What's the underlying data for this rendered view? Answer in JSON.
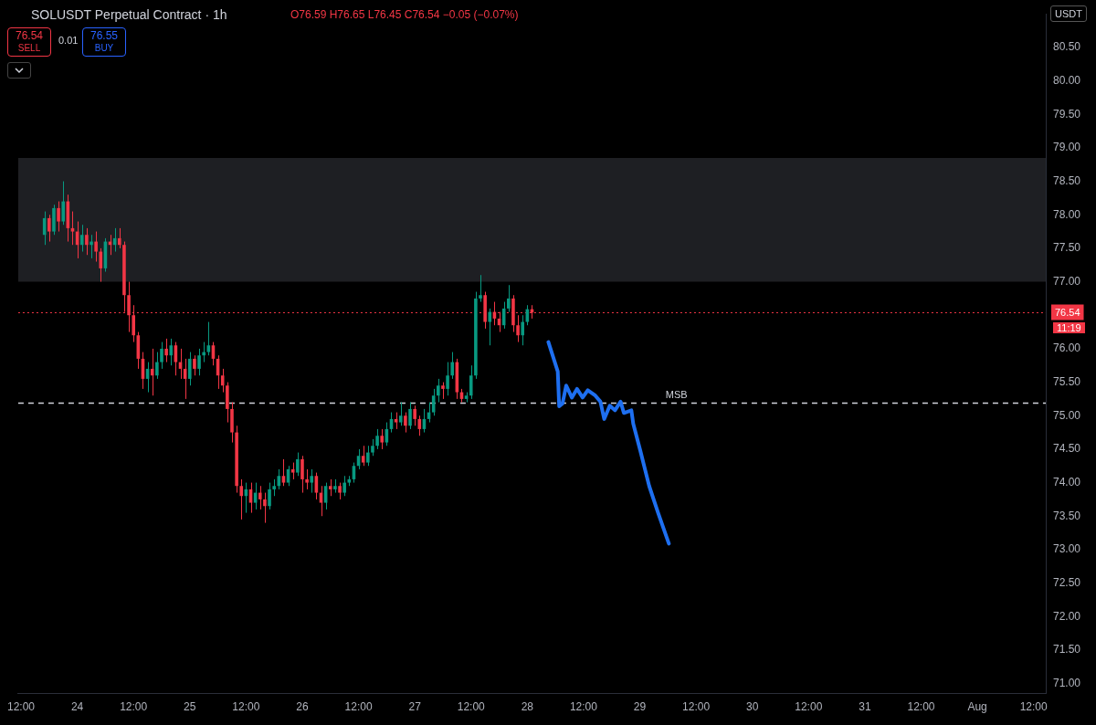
{
  "chart_data": {
    "type": "candlestick",
    "title": "SOLUSDT Perpetual Contract · 1h",
    "annotations": [
      "O76.59 H76.65 L76.45 C76.54 −0.05 (−0.07%)",
      "76.54",
      "SELL",
      "0.01",
      "76.55",
      "BUY",
      "11:19",
      "USDT"
    ],
    "x": [
      "--07-23T17:00",
      "--07-23T18:00",
      "--07-23T19:00",
      "--07-23T20:00",
      "--07-23T21:00",
      "--07-23T22:00",
      "--07-23T23:00",
      "--07-24T00:00",
      "--07-24T01:00",
      "--07-24T02:00",
      "--07-24T03:00",
      "--07-24T04:00",
      "--07-24T05:00",
      "--07-24T06:00",
      "--07-24T07:00",
      "--07-24T08:00",
      "--07-24T09:00",
      "--07-24T10:00",
      "--07-24T11:00",
      "--07-24T12:00",
      "--07-24T13:00",
      "--07-24T14:00",
      "--07-24T15:00",
      "--07-24T16:00",
      "--07-24T17:00",
      "--07-24T18:00",
      "--07-24T19:00",
      "--07-24T20:00",
      "--07-24T21:00",
      "--07-24T22:00",
      "--07-24T23:00",
      "--07-25T00:00",
      "--07-25T01:00",
      "--07-25T02:00",
      "--07-25T03:00",
      "--07-25T04:00",
      "--07-25T05:00",
      "--07-25T06:00",
      "--07-25T07:00",
      "--07-25T08:00",
      "--07-25T09:00",
      "--07-25T10:00",
      "--07-25T11:00",
      "--07-25T12:00",
      "--07-25T13:00",
      "--07-25T14:00",
      "--07-25T15:00",
      "--07-25T16:00",
      "--07-25T17:00",
      "--07-25T18:00",
      "--07-25T19:00",
      "--07-25T20:00",
      "--07-25T21:00",
      "--07-25T22:00",
      "--07-25T23:00",
      "--07-26T00:00",
      "--07-26T01:00",
      "--07-26T02:00",
      "--07-26T03:00",
      "--07-26T04:00",
      "--07-26T05:00",
      "--07-26T06:00",
      "--07-26T07:00",
      "--07-26T08:00",
      "--07-26T09:00",
      "--07-26T10:00",
      "--07-26T11:00",
      "--07-26T12:00",
      "--07-26T13:00",
      "--07-26T14:00",
      "--07-26T15:00",
      "--07-26T16:00",
      "--07-26T17:00",
      "--07-26T18:00",
      "--07-26T19:00",
      "--07-26T20:00",
      "--07-26T21:00",
      "--07-26T22:00",
      "--07-26T23:00",
      "--07-27T00:00",
      "--07-27T01:00",
      "--07-27T02:00",
      "--07-27T03:00",
      "--07-27T04:00",
      "--07-27T05:00",
      "--07-27T06:00",
      "--07-27T07:00",
      "--07-27T08:00",
      "--07-27T09:00",
      "--07-27T10:00",
      "--07-27T11:00",
      "--07-27T12:00",
      "--07-27T13:00",
      "--07-27T14:00",
      "--07-27T15:00",
      "--07-27T16:00",
      "--07-27T17:00",
      "--07-27T18:00",
      "--07-27T19:00",
      "--07-27T20:00",
      "--07-27T21:00",
      "--07-27T22:00",
      "--07-27T23:00",
      "--07-28T00:00",
      "--07-28T01:00"
    ],
    "ohlc": [
      [
        77.7,
        78.05,
        77.55,
        77.95
      ],
      [
        77.95,
        78.0,
        77.6,
        77.75
      ],
      [
        77.75,
        78.15,
        77.7,
        78.1
      ],
      [
        78.1,
        78.2,
        77.75,
        77.9
      ],
      [
        77.9,
        78.5,
        77.85,
        78.2
      ],
      [
        78.2,
        78.3,
        77.6,
        77.8
      ],
      [
        77.8,
        78.05,
        77.55,
        77.75
      ],
      [
        77.75,
        77.9,
        77.35,
        77.55
      ],
      [
        77.55,
        77.85,
        77.45,
        77.7
      ],
      [
        77.7,
        77.8,
        77.4,
        77.55
      ],
      [
        77.55,
        77.7,
        77.35,
        77.6
      ],
      [
        77.6,
        77.75,
        77.3,
        77.45
      ],
      [
        77.45,
        77.5,
        77.0,
        77.2
      ],
      [
        77.2,
        77.65,
        77.15,
        77.6
      ],
      [
        77.6,
        77.7,
        77.4,
        77.55
      ],
      [
        77.55,
        77.8,
        77.45,
        77.65
      ],
      [
        77.65,
        77.8,
        77.5,
        77.55
      ],
      [
        77.55,
        77.6,
        76.55,
        76.8
      ],
      [
        76.8,
        77.0,
        76.25,
        76.5
      ],
      [
        76.5,
        76.65,
        76.1,
        76.2
      ],
      [
        76.2,
        76.25,
        75.7,
        75.85
      ],
      [
        75.85,
        75.95,
        75.4,
        75.55
      ],
      [
        75.55,
        75.8,
        75.35,
        75.7
      ],
      [
        75.7,
        76.0,
        75.3,
        75.6
      ],
      [
        75.6,
        75.95,
        75.55,
        75.8
      ],
      [
        75.8,
        76.1,
        75.7,
        76.0
      ],
      [
        76.0,
        76.15,
        75.8,
        75.9
      ],
      [
        75.9,
        76.15,
        75.75,
        76.05
      ],
      [
        76.05,
        76.1,
        75.6,
        75.8
      ],
      [
        75.8,
        76.0,
        75.55,
        75.7
      ],
      [
        75.7,
        75.85,
        75.25,
        75.55
      ],
      [
        75.55,
        75.95,
        75.45,
        75.85
      ],
      [
        75.85,
        75.9,
        75.6,
        75.7
      ],
      [
        75.7,
        76.0,
        75.6,
        75.9
      ],
      [
        75.9,
        76.1,
        75.8,
        75.95
      ],
      [
        75.95,
        76.4,
        75.9,
        76.05
      ],
      [
        76.05,
        76.1,
        75.75,
        75.85
      ],
      [
        75.85,
        75.9,
        75.4,
        75.6
      ],
      [
        75.6,
        75.7,
        75.35,
        75.45
      ],
      [
        75.45,
        75.5,
        74.9,
        75.1
      ],
      [
        75.1,
        75.2,
        74.6,
        74.75
      ],
      [
        74.75,
        74.85,
        73.85,
        73.95
      ],
      [
        73.95,
        74.05,
        73.45,
        73.8
      ],
      [
        73.8,
        74.0,
        73.55,
        73.9
      ],
      [
        73.9,
        74.0,
        73.55,
        73.7
      ],
      [
        73.7,
        74.0,
        73.6,
        73.85
      ],
      [
        73.85,
        73.95,
        73.6,
        73.75
      ],
      [
        73.75,
        73.85,
        73.4,
        73.65
      ],
      [
        73.65,
        74.0,
        73.6,
        73.9
      ],
      [
        73.9,
        74.05,
        73.8,
        73.95
      ],
      [
        73.95,
        74.2,
        73.9,
        74.1
      ],
      [
        74.1,
        74.35,
        73.95,
        74.0
      ],
      [
        74.0,
        74.25,
        73.95,
        74.2
      ],
      [
        74.2,
        74.3,
        74.05,
        74.15
      ],
      [
        74.15,
        74.45,
        74.1,
        74.35
      ],
      [
        74.35,
        74.4,
        73.85,
        74.05
      ],
      [
        74.05,
        74.2,
        73.9,
        74.0
      ],
      [
        74.0,
        74.2,
        73.85,
        74.1
      ],
      [
        74.1,
        74.15,
        73.75,
        73.85
      ],
      [
        73.85,
        73.95,
        73.5,
        73.7
      ],
      [
        73.7,
        74.0,
        73.6,
        73.95
      ],
      [
        73.95,
        74.05,
        73.8,
        73.9
      ],
      [
        73.9,
        74.05,
        73.85,
        73.95
      ],
      [
        73.95,
        74.0,
        73.75,
        73.85
      ],
      [
        73.85,
        74.1,
        73.8,
        74.0
      ],
      [
        74.0,
        74.1,
        73.95,
        74.05
      ],
      [
        74.05,
        74.3,
        74.0,
        74.25
      ],
      [
        74.25,
        74.5,
        74.2,
        74.4
      ],
      [
        74.4,
        74.55,
        74.25,
        74.3
      ],
      [
        74.3,
        74.55,
        74.25,
        74.45
      ],
      [
        74.45,
        74.65,
        74.4,
        74.55
      ],
      [
        74.55,
        74.8,
        74.5,
        74.7
      ],
      [
        74.7,
        74.8,
        74.5,
        74.6
      ],
      [
        74.6,
        74.9,
        74.55,
        74.8
      ],
      [
        74.8,
        75.05,
        74.75,
        74.95
      ],
      [
        74.95,
        75.05,
        74.8,
        74.9
      ],
      [
        74.9,
        75.2,
        74.85,
        75.0
      ],
      [
        75.0,
        75.05,
        74.75,
        74.85
      ],
      [
        74.85,
        75.2,
        74.8,
        75.1
      ],
      [
        75.1,
        75.15,
        74.85,
        74.95
      ],
      [
        74.95,
        75.0,
        74.7,
        74.8
      ],
      [
        74.8,
        75.1,
        74.75,
        74.95
      ],
      [
        74.95,
        75.2,
        74.9,
        75.05
      ],
      [
        75.05,
        75.4,
        75.0,
        75.3
      ],
      [
        75.3,
        75.55,
        75.2,
        75.45
      ],
      [
        75.45,
        75.5,
        75.25,
        75.4
      ],
      [
        75.4,
        75.8,
        75.3,
        75.6
      ],
      [
        75.6,
        75.95,
        75.55,
        75.8
      ],
      [
        75.8,
        75.85,
        75.25,
        75.35
      ],
      [
        75.35,
        75.4,
        75.2,
        75.25
      ],
      [
        75.25,
        75.35,
        75.2,
        75.3
      ],
      [
        75.3,
        75.75,
        75.25,
        75.6
      ],
      [
        75.6,
        76.85,
        75.55,
        76.75
      ],
      [
        76.75,
        77.1,
        76.7,
        76.8
      ],
      [
        76.8,
        76.85,
        76.3,
        76.4
      ],
      [
        76.4,
        76.6,
        76.05,
        76.55
      ],
      [
        76.55,
        76.7,
        76.35,
        76.45
      ],
      [
        76.45,
        76.55,
        76.25,
        76.35
      ],
      [
        76.35,
        76.7,
        76.3,
        76.6
      ],
      [
        76.6,
        76.95,
        76.55,
        76.75
      ],
      [
        76.75,
        76.8,
        76.25,
        76.35
      ],
      [
        76.35,
        76.5,
        76.1,
        76.2
      ],
      [
        76.2,
        76.5,
        76.05,
        76.4
      ],
      [
        76.4,
        76.65,
        76.35,
        76.59
      ],
      [
        76.59,
        76.65,
        76.45,
        76.54
      ]
    ],
    "series": [
      {
        "type": "line",
        "color": "#1e6ff0",
        "x": [
          "--07-28T04:30",
          "--07-28T06:30",
          "--07-28T06:48",
          "--07-28T07:30",
          "--07-28T08:18",
          "--07-28T09:30",
          "--07-28T10:36",
          "--07-28T11:48",
          "--07-28T12:54",
          "--07-28T14:30",
          "--07-28T15:36",
          "--07-28T16:24",
          "--07-28T17:36",
          "--07-28T18:42",
          "--07-28T19:54",
          "--07-28T20:36",
          "--07-28T22:12",
          "--07-28T22:36",
          "--07-29T00:06",
          "--07-29T02:00",
          "--07-29T03:54",
          "--07-29T06:12"
        ],
        "values": [
          76.1,
          75.66,
          75.14,
          75.18,
          75.45,
          75.27,
          75.4,
          75.27,
          75.38,
          75.3,
          75.21,
          74.95,
          75.15,
          75.08,
          75.21,
          75.04,
          75.08,
          74.88,
          74.48,
          73.95,
          73.55,
          73.09
        ]
      }
    ],
    "xlim": [
      "--07-23T11:24",
      "--08-01T14:36"
    ],
    "xticks": [
      {
        "value": "--07-23T12:00",
        "label": "12:00"
      },
      {
        "value": "--07-24",
        "label": "24"
      },
      {
        "value": "--07-24T12:00",
        "label": "12:00"
      },
      {
        "value": "--07-25",
        "label": "25"
      },
      {
        "value": "--07-25T12:00",
        "label": "12:00"
      },
      {
        "value": "--07-26",
        "label": "26"
      },
      {
        "value": "--07-26T12:00",
        "label": "12:00"
      },
      {
        "value": "--07-27",
        "label": "27"
      },
      {
        "value": "--07-27T12:00",
        "label": "12:00"
      },
      {
        "value": "--07-28",
        "label": "28"
      },
      {
        "value": "--07-28T12:00",
        "label": "12:00"
      },
      {
        "value": "--07-29",
        "label": "29"
      },
      {
        "value": "--07-29T12:00",
        "label": "12:00"
      },
      {
        "value": "--07-30",
        "label": "30"
      },
      {
        "value": "--07-30T12:00",
        "label": "12:00"
      },
      {
        "value": "--07-31",
        "label": "31"
      },
      {
        "value": "--07-31T12:00",
        "label": "12:00"
      },
      {
        "value": "--08-01",
        "label": "Aug"
      },
      {
        "value": "--08-01T12:00",
        "label": "12:00"
      }
    ],
    "ylim": [
      70.85,
      81.0
    ],
    "yticks": [
      {
        "value": 71,
        "label": "71.00"
      },
      {
        "value": 71.5,
        "label": "71.50"
      },
      {
        "value": 72,
        "label": "72.00"
      },
      {
        "value": 72.5,
        "label": "72.50"
      },
      {
        "value": 73,
        "label": "73.00"
      },
      {
        "value": 73.5,
        "label": "73.50"
      },
      {
        "value": 74,
        "label": "74.00"
      },
      {
        "value": 74.5,
        "label": "74.50"
      },
      {
        "value": 75,
        "label": "75.00"
      },
      {
        "value": 75.5,
        "label": "75.50"
      },
      {
        "value": 76,
        "label": "76.00"
      },
      {
        "value": 77,
        "label": "77.00"
      },
      {
        "value": 77.5,
        "label": "77.50"
      },
      {
        "value": 78,
        "label": "78.00"
      },
      {
        "value": 78.5,
        "label": "78.50"
      },
      {
        "value": 79,
        "label": "79.00"
      },
      {
        "value": 79.5,
        "label": "79.50"
      },
      {
        "value": 80,
        "label": "80.00"
      },
      {
        "value": 80.5,
        "label": "80.50"
      }
    ],
    "bands": [
      {
        "axis": "y",
        "from": 77.0,
        "to": 78.85,
        "color": "#1e1f23"
      }
    ],
    "ref_lines": [
      {
        "axis": "y",
        "value": 75.2,
        "label": "MSB",
        "color": "#d1d4dc",
        "line_style": "dashed"
      },
      {
        "axis": "y",
        "value": 76.54,
        "label": "76.54",
        "color": "#f23645",
        "line_style": "dotted"
      }
    ],
    "marker": "none",
    "grid": false,
    "legend": false
  }
}
